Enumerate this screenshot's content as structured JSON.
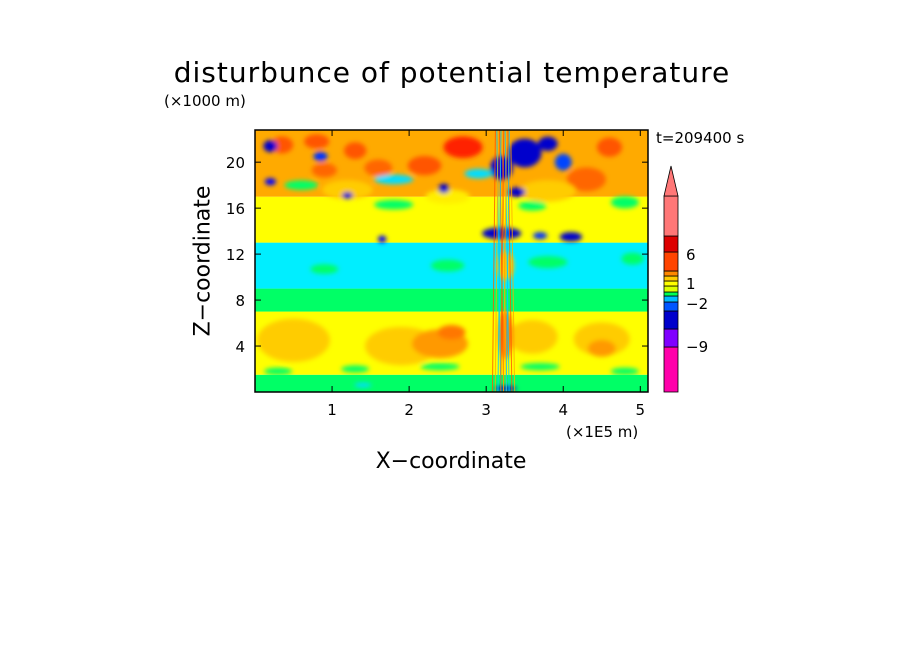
{
  "chart_data": {
    "type": "heatmap",
    "title": "disturbunce of potential temperature",
    "xlabel": "X−coordinate",
    "ylabel": "Z−coordinate",
    "x_unit": "(×1E5 m)",
    "y_unit": "(×1000 m)",
    "time_label": "t=209400 s",
    "xlim": [
      0,
      5.1
    ],
    "ylim": [
      0,
      22.8
    ],
    "xticks": [
      "1",
      "2",
      "3",
      "4",
      "5"
    ],
    "xtick_values": [
      1,
      2,
      3,
      4,
      5
    ],
    "yticks": [
      "4",
      "8",
      "12",
      "16",
      "20"
    ],
    "ytick_values": [
      4,
      8,
      12,
      16,
      20
    ],
    "colorbar": {
      "labels": [
        "6",
        "1",
        "−2",
        "−9"
      ],
      "label_values": [
        6,
        1,
        -2,
        -9
      ],
      "colors": [
        "#ff00aa",
        "#8000ff",
        "#0000cc",
        "#0055ff",
        "#00bbff",
        "#00ff55",
        "#ddff00",
        "#ffff00",
        "#ffcc00",
        "#ff8800",
        "#ff4400",
        "#dd0000",
        "#ff7777"
      ]
    },
    "bands": [
      {
        "z": [
          0,
          1.5
        ],
        "value": "0 to 1",
        "color": "#00ff66"
      },
      {
        "z": [
          1.5,
          7
        ],
        "value": "1 to 2",
        "color": "#ffff00"
      },
      {
        "z": [
          7,
          9
        ],
        "value": "-1 to 0",
        "color": "#00ff66"
      },
      {
        "z": [
          9,
          13
        ],
        "value": "-2 to -1",
        "color": "#00eeff"
      },
      {
        "z": [
          13,
          17
        ],
        "value": "0 to 1",
        "color": "#ffff00"
      },
      {
        "z": [
          17,
          22.8
        ],
        "value": "2 to 6",
        "color": "#ffaa00"
      }
    ]
  }
}
